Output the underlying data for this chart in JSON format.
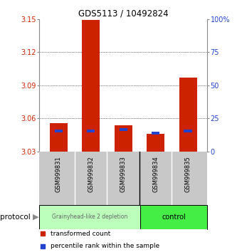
{
  "title": "GDS5113 / 10492824",
  "samples": [
    "GSM999831",
    "GSM999832",
    "GSM999833",
    "GSM999834",
    "GSM999835"
  ],
  "ylim_left": [
    3.03,
    3.15
  ],
  "yticks_left": [
    3.03,
    3.06,
    3.09,
    3.12,
    3.15
  ],
  "ylim_right": [
    0,
    100
  ],
  "yticks_right": [
    0,
    25,
    50,
    75,
    100
  ],
  "bar_base": 3.03,
  "red_tops": [
    3.056,
    3.149,
    3.054,
    3.046,
    3.097
  ],
  "blue_values": [
    3.049,
    3.049,
    3.05,
    3.047,
    3.049
  ],
  "blue_size": 0.0025,
  "bar_color": "#cc2200",
  "blue_color": "#2244cc",
  "left_label_color": "#cc2200",
  "right_label_color": "#2244cc",
  "bg_plot": "#ffffff",
  "bg_xaxis": "#c8c8c8",
  "protocol_label": "protocol",
  "legend_red": "transformed count",
  "legend_blue": "percentile rank within the sample",
  "group_label_1": "Grainyhead-like 2 depletion",
  "group_label_2": "control",
  "group_color_1": "#bbffbb",
  "group_color_2": "#44ee44",
  "n_group1": 3,
  "n_group2": 2
}
